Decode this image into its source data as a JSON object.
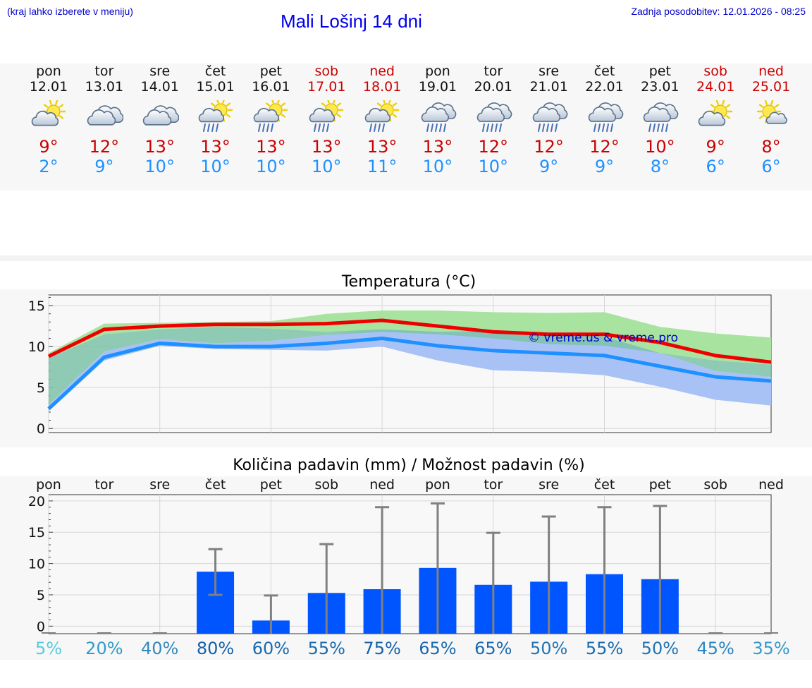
{
  "header": {
    "hint": "(kraj lahko izberete v meniju)",
    "title": "Mali Lošinj 14 dni",
    "updated": "Zadnja posodobitev: 12.01.2026 - 08:25"
  },
  "days": [
    {
      "name": "pon",
      "date": "12.01",
      "weekend": false,
      "icon": "partly-cloudy-icon",
      "max": "9°",
      "min": "2°"
    },
    {
      "name": "tor",
      "date": "13.01",
      "weekend": false,
      "icon": "cloudy-icon",
      "max": "12°",
      "min": "9°"
    },
    {
      "name": "sre",
      "date": "14.01",
      "weekend": false,
      "icon": "cloudy-icon",
      "max": "13°",
      "min": "10°"
    },
    {
      "name": "čet",
      "date": "15.01",
      "weekend": false,
      "icon": "sun-rain-icon",
      "max": "13°",
      "min": "10°"
    },
    {
      "name": "pet",
      "date": "16.01",
      "weekend": false,
      "icon": "sun-rain-icon",
      "max": "13°",
      "min": "10°"
    },
    {
      "name": "sob",
      "date": "17.01",
      "weekend": true,
      "icon": "sun-rain-icon",
      "max": "13°",
      "min": "10°"
    },
    {
      "name": "ned",
      "date": "18.01",
      "weekend": true,
      "icon": "sun-rain-icon",
      "max": "13°",
      "min": "11°"
    },
    {
      "name": "pon",
      "date": "19.01",
      "weekend": false,
      "icon": "cloud-rain-icon",
      "max": "13°",
      "min": "10°"
    },
    {
      "name": "tor",
      "date": "20.01",
      "weekend": false,
      "icon": "cloud-rain-icon",
      "max": "12°",
      "min": "10°"
    },
    {
      "name": "sre",
      "date": "21.01",
      "weekend": false,
      "icon": "cloud-rain-icon",
      "max": "12°",
      "min": "9°"
    },
    {
      "name": "čet",
      "date": "22.01",
      "weekend": false,
      "icon": "cloud-rain-icon",
      "max": "12°",
      "min": "9°"
    },
    {
      "name": "pet",
      "date": "23.01",
      "weekend": false,
      "icon": "cloud-rain-icon",
      "max": "10°",
      "min": "8°"
    },
    {
      "name": "sob",
      "date": "24.01",
      "weekend": true,
      "icon": "partly-cloudy-icon",
      "max": "9°",
      "min": "6°"
    },
    {
      "name": "ned",
      "date": "25.01",
      "weekend": true,
      "icon": "sun-cloud-icon",
      "max": "8°",
      "min": "6°"
    }
  ],
  "colors": {
    "max_line": "#ee0000",
    "min_line": "#1e90ff",
    "max_band": "#a8e3a0",
    "min_band": "#a9c2f5",
    "overlap_band": "#7cc2a8",
    "bar": "#0055ff",
    "errbar": "#808080",
    "watermark": "#0000cc"
  },
  "chart_data": [
    {
      "type": "line",
      "title": "Temperatura (°C)",
      "xlabel": "",
      "ylabel": "",
      "ylim": [
        -0.5,
        16.3
      ],
      "yticks": [
        0,
        5,
        10,
        15
      ],
      "x": [
        0,
        1,
        2,
        3,
        4,
        5,
        6,
        7,
        8,
        9,
        10,
        11,
        12,
        13
      ],
      "watermark": "© vreme.us & vreme.pro",
      "series": [
        {
          "name": "max",
          "values": [
            8.8,
            12.1,
            12.5,
            12.7,
            12.7,
            12.8,
            13.2,
            12.5,
            11.8,
            11.5,
            11.5,
            10.5,
            8.9,
            8.1
          ],
          "band_low": [
            8.6,
            11.5,
            12.1,
            12.4,
            12.2,
            11.8,
            11.8,
            11.5,
            11.0,
            10.3,
            10.1,
            9.2,
            8.3,
            7.8
          ],
          "band_high": [
            9.2,
            12.8,
            12.9,
            13.0,
            13.1,
            14.0,
            14.4,
            14.4,
            14.2,
            14.1,
            14.2,
            12.4,
            11.6,
            11.1
          ]
        },
        {
          "name": "min",
          "values": [
            2.4,
            8.7,
            10.4,
            10.0,
            10.0,
            10.4,
            11.0,
            10.1,
            9.5,
            9.2,
            8.9,
            7.6,
            6.3,
            5.8
          ],
          "band_low": [
            2.1,
            8.3,
            10.1,
            9.7,
            9.6,
            9.5,
            10.0,
            8.3,
            7.1,
            6.9,
            6.5,
            5.1,
            3.5,
            2.8
          ],
          "band_high": [
            2.9,
            9.4,
            10.9,
            10.4,
            10.7,
            11.4,
            12.1,
            11.8,
            11.9,
            11.6,
            11.2,
            9.2,
            7.0,
            6.3
          ]
        }
      ]
    },
    {
      "type": "bar",
      "title": "Količina padavin (mm) / Možnost padavin (%)",
      "ylim": [
        -1.2,
        21
      ],
      "yticks": [
        0,
        5,
        10,
        15,
        20
      ],
      "categories": [
        "pon",
        "tor",
        "sre",
        "čet",
        "pet",
        "sob",
        "ned",
        "pon",
        "tor",
        "sre",
        "čet",
        "pet",
        "sob",
        "ned"
      ],
      "values": [
        0,
        0,
        0,
        8.7,
        0.9,
        5.3,
        5.9,
        9.3,
        6.6,
        7.1,
        8.3,
        7.5,
        0,
        0
      ],
      "error_low": [
        0,
        0,
        0,
        5.0,
        0,
        0,
        0,
        0,
        0,
        0,
        0,
        0,
        0,
        0
      ],
      "error_high": [
        0,
        0,
        0,
        12.3,
        4.9,
        13.1,
        19.0,
        19.6,
        14.9,
        17.5,
        19.0,
        19.2,
        0,
        0
      ],
      "probability": [
        "5%",
        "20%",
        "40%",
        "80%",
        "60%",
        "55%",
        "75%",
        "65%",
        "65%",
        "50%",
        "55%",
        "50%",
        "45%",
        "35%"
      ],
      "probability_colors": [
        "#55ccdd",
        "#3399cc",
        "#3388bb",
        "#1560a8",
        "#1a6aae",
        "#1a6aae",
        "#1560a8",
        "#1a6aae",
        "#1a6aae",
        "#1f74b4",
        "#1a6aae",
        "#1f74b4",
        "#2a86c2",
        "#3399cc"
      ]
    }
  ]
}
